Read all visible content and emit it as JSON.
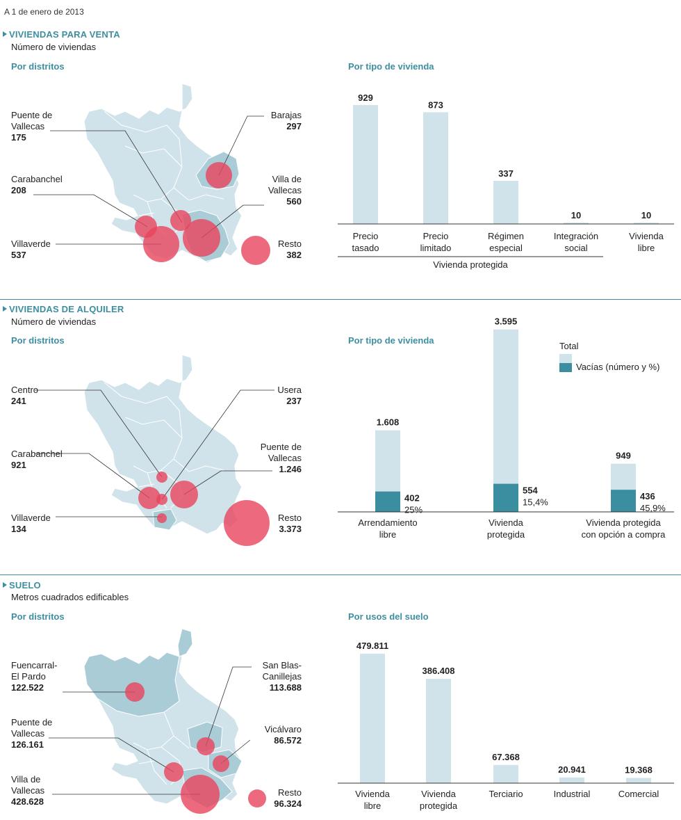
{
  "date_label": "A 1 de enero de 2013",
  "colors": {
    "accent": "#3d8fa0",
    "map_fill": "#d1e3ea",
    "map_highlight": "#a9ccd7",
    "bubble": "#e8435c",
    "bar_total": "#d1e3ea",
    "bar_empty": "#3a8e9f"
  },
  "sections": [
    {
      "title": "VIVIENDAS PARA VENTA",
      "subtitle": "Número de viviendas",
      "map_heading": "Por distritos",
      "bars_heading": "Por tipo de vivienda",
      "districts": [
        {
          "name": "Puente de\nVallecas",
          "value": "175"
        },
        {
          "name": "Carabanchel",
          "value": "208"
        },
        {
          "name": "Villaverde",
          "value": "537"
        },
        {
          "name": "Barajas",
          "value": "297"
        },
        {
          "name": "Villa de\nVallecas",
          "value": "560"
        },
        {
          "name": "Resto",
          "value": "382"
        }
      ]
    },
    {
      "title": "VIVIENDAS DE ALQUILER",
      "subtitle": "Número de viviendas",
      "map_heading": "Por distritos",
      "bars_heading": "Por tipo de vivienda",
      "districts": [
        {
          "name": "Centro",
          "value": "241"
        },
        {
          "name": "Carabanchel",
          "value": "921"
        },
        {
          "name": "Villaverde",
          "value": "134"
        },
        {
          "name": "Usera",
          "value": "237"
        },
        {
          "name": "Puente de\nVallecas",
          "value": "1.246"
        },
        {
          "name": "Resto",
          "value": "3.373"
        }
      ],
      "legend": {
        "total": "Total",
        "vacias": "Vacías (número y %)"
      }
    },
    {
      "title": "SUELO",
      "subtitle": "Metros cuadrados edificables",
      "map_heading": "Por distritos",
      "bars_heading": "Por usos del suelo",
      "districts": [
        {
          "name": "Fuencarral-\nEl Pardo",
          "value": "122.522"
        },
        {
          "name": "Puente de\nVallecas",
          "value": "126.161"
        },
        {
          "name": "Villa de\nVallecas",
          "value": "428.628"
        },
        {
          "name": "San Blas-\nCanillejas",
          "value": "113.688"
        },
        {
          "name": "Vicálvaro",
          "value": "86.572"
        },
        {
          "name": "Resto",
          "value": "96.324"
        }
      ]
    }
  ],
  "chart_data": [
    {
      "type": "bar",
      "title": "Por tipo de vivienda",
      "categories": [
        "Precio\ntasado",
        "Precio\nlimitado",
        "Régimen\nespecial",
        "Integración\nsocial",
        "Vivienda\nlibre"
      ],
      "values": [
        929,
        873,
        337,
        10,
        10
      ],
      "value_labels": [
        "929",
        "873",
        "337",
        "10",
        "10"
      ],
      "group_label": "Vivienda protegida",
      "ylim": [
        0,
        1000
      ]
    },
    {
      "type": "bar",
      "title": "Por tipo de vivienda",
      "categories": [
        "Arrendamiento\nlibre",
        "Vivienda\nprotegida",
        "Vivienda protegida\ncon opción a compra"
      ],
      "series": [
        {
          "name": "Total",
          "values": [
            1608,
            3595,
            949
          ],
          "value_labels": [
            "1.608",
            "3.595",
            "949"
          ]
        },
        {
          "name": "Vacías (número y %)",
          "values": [
            402,
            554,
            436
          ],
          "value_labels": [
            "402",
            "554",
            "436"
          ],
          "pct_labels": [
            "25%",
            "15,4%",
            "45,9%"
          ]
        }
      ],
      "ylim": [
        0,
        3700
      ]
    },
    {
      "type": "bar",
      "title": "Por usos del suelo",
      "categories": [
        "Vivienda\nlibre",
        "Vivienda\nprotegida",
        "Terciario",
        "Industrial",
        "Comercial"
      ],
      "values": [
        479811,
        386408,
        67368,
        20941,
        19368
      ],
      "value_labels": [
        "479.811",
        "386.408",
        "67.368",
        "20.941",
        "19.368"
      ],
      "ylim": [
        0,
        500000
      ]
    }
  ]
}
